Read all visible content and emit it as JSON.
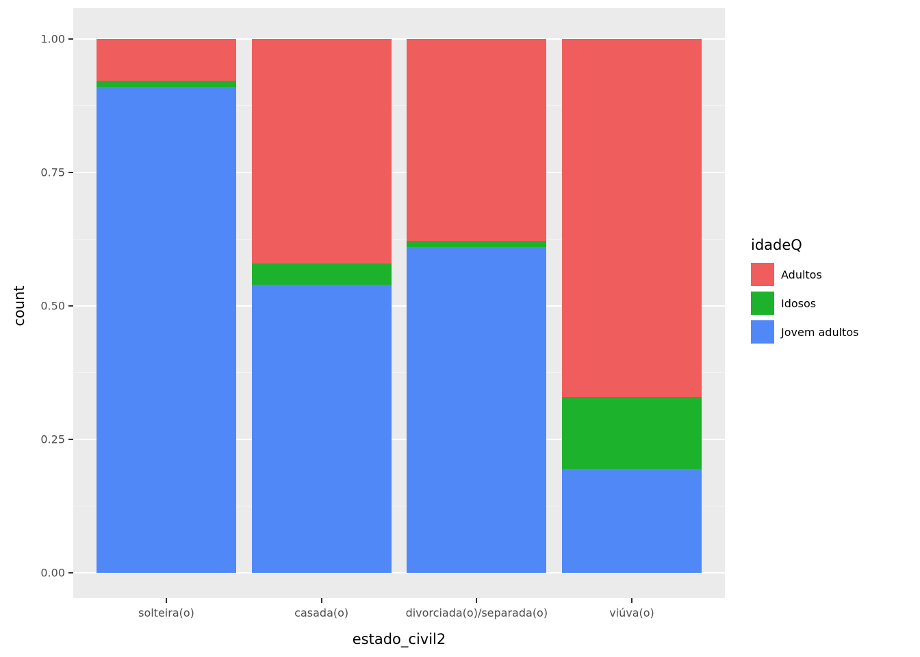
{
  "figure": {
    "background": "#FFFFFF",
    "panel_background": "#EBEBEB",
    "grid_major_color": "#FFFFFF",
    "tick_color": "#333333",
    "tick_label_color": "#4D4D4D"
  },
  "chart_data": {
    "type": "bar",
    "stacked": true,
    "normalized": true,
    "title": "",
    "xlabel": "estado_civil2",
    "ylabel": "count",
    "categories": [
      "solteira(o)",
      "casada(o)",
      "divorciada(o)/separada(o)",
      "viúva(o)"
    ],
    "series": [
      {
        "name": "Jovem adultos",
        "color": "#5188F8",
        "values": [
          0.91,
          0.54,
          0.61,
          0.195
        ]
      },
      {
        "name": "Idosos",
        "color": "#1CB22B",
        "values": [
          0.012,
          0.04,
          0.012,
          0.135
        ]
      },
      {
        "name": "Adultos",
        "color": "#EF5D5C",
        "values": [
          0.078,
          0.42,
          0.378,
          0.67
        ]
      }
    ],
    "ylim": [
      0,
      1
    ],
    "y_ticks": [
      0.0,
      0.25,
      0.5,
      0.75,
      1.0
    ],
    "y_tick_labels": [
      "0.00",
      "0.25",
      "0.50",
      "0.75",
      "1.00"
    ],
    "grid": true,
    "legend": {
      "title": "idadeQ",
      "position": "right",
      "entries": [
        {
          "label": "Adultos",
          "color": "#EF5D5C"
        },
        {
          "label": "Idosos",
          "color": "#1CB22B"
        },
        {
          "label": "Jovem adultos",
          "color": "#5188F8"
        }
      ]
    }
  }
}
